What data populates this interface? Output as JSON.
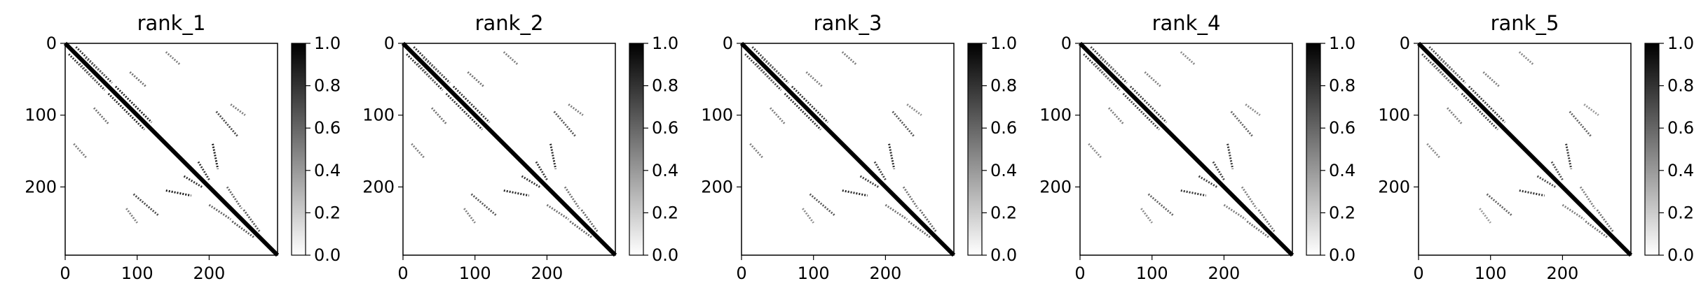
{
  "figure": {
    "type": "heatmap-grid",
    "colormap": "gray_r",
    "color_min": "#ffffff",
    "color_max": "#000000"
  },
  "chart_data": [
    {
      "type": "heatmap",
      "title": "rank_1",
      "xlabel": "",
      "ylabel": "",
      "xlim": [
        0,
        295
      ],
      "ylim": [
        295,
        0
      ],
      "xticks": [
        0,
        100,
        200
      ],
      "yticks": [
        0,
        100,
        200
      ],
      "colorbar": {
        "range": [
          0.0,
          1.0
        ],
        "ticks": [
          "0.0",
          "0.2",
          "0.4",
          "0.6",
          "0.8",
          "1.0"
        ]
      },
      "matrix_size": 295,
      "diagonal": {
        "value": 1.0
      },
      "contacts": [
        {
          "from": [
            5,
            15
          ],
          "to": [
            55,
            65
          ],
          "value": 0.8
        },
        {
          "from": [
            20,
            28
          ],
          "to": [
            45,
            55
          ],
          "value": 0.6
        },
        {
          "from": [
            12,
            140
          ],
          "to": [
            30,
            160
          ],
          "value": 0.5
        },
        {
          "from": [
            40,
            90
          ],
          "to": [
            60,
            112
          ],
          "value": 0.55
        },
        {
          "from": [
            60,
            70
          ],
          "to": [
            110,
            120
          ],
          "value": 0.85
        },
        {
          "from": [
            85,
            230
          ],
          "to": [
            100,
            250
          ],
          "value": 0.5
        },
        {
          "from": [
            95,
            210
          ],
          "to": [
            130,
            240
          ],
          "value": 0.7
        },
        {
          "from": [
            140,
            205
          ],
          "to": [
            175,
            212
          ],
          "value": 0.9
        },
        {
          "from": [
            165,
            185
          ],
          "to": [
            190,
            200
          ],
          "value": 0.8
        },
        {
          "from": [
            200,
            225
          ],
          "to": [
            230,
            245
          ],
          "value": 0.6
        },
        {
          "from": [
            232,
            248
          ],
          "to": [
            262,
            270
          ],
          "value": 0.65
        }
      ]
    },
    {
      "type": "heatmap",
      "title": "rank_2",
      "xlabel": "",
      "ylabel": "",
      "xlim": [
        0,
        295
      ],
      "ylim": [
        295,
        0
      ],
      "xticks": [
        0,
        100,
        200
      ],
      "yticks": [
        0,
        100,
        200
      ],
      "colorbar": {
        "range": [
          0.0,
          1.0
        ],
        "ticks": [
          "0.0",
          "0.2",
          "0.4",
          "0.6",
          "0.8",
          "1.0"
        ]
      },
      "matrix_size": 295,
      "diagonal": {
        "value": 1.0
      },
      "contacts": [
        {
          "from": [
            5,
            15
          ],
          "to": [
            55,
            65
          ],
          "value": 0.8
        },
        {
          "from": [
            20,
            28
          ],
          "to": [
            45,
            55
          ],
          "value": 0.6
        },
        {
          "from": [
            12,
            140
          ],
          "to": [
            30,
            160
          ],
          "value": 0.5
        },
        {
          "from": [
            40,
            90
          ],
          "to": [
            60,
            112
          ],
          "value": 0.55
        },
        {
          "from": [
            60,
            70
          ],
          "to": [
            110,
            120
          ],
          "value": 0.8
        },
        {
          "from": [
            85,
            230
          ],
          "to": [
            100,
            250
          ],
          "value": 0.5
        },
        {
          "from": [
            95,
            210
          ],
          "to": [
            130,
            240
          ],
          "value": 0.65
        },
        {
          "from": [
            140,
            205
          ],
          "to": [
            175,
            212
          ],
          "value": 0.85
        },
        {
          "from": [
            165,
            185
          ],
          "to": [
            190,
            200
          ],
          "value": 0.8
        },
        {
          "from": [
            200,
            225
          ],
          "to": [
            230,
            245
          ],
          "value": 0.55
        },
        {
          "from": [
            232,
            248
          ],
          "to": [
            262,
            270
          ],
          "value": 0.6
        }
      ]
    },
    {
      "type": "heatmap",
      "title": "rank_3",
      "xlabel": "",
      "ylabel": "",
      "xlim": [
        0,
        295
      ],
      "ylim": [
        295,
        0
      ],
      "xticks": [
        0,
        100,
        200
      ],
      "yticks": [
        0,
        100,
        200
      ],
      "colorbar": {
        "range": [
          0.0,
          1.0
        ],
        "ticks": [
          "0.0",
          "0.2",
          "0.4",
          "0.6",
          "0.8",
          "1.0"
        ]
      },
      "matrix_size": 295,
      "diagonal": {
        "value": 1.0
      },
      "contacts": [
        {
          "from": [
            5,
            15
          ],
          "to": [
            55,
            65
          ],
          "value": 0.75
        },
        {
          "from": [
            20,
            28
          ],
          "to": [
            45,
            55
          ],
          "value": 0.6
        },
        {
          "from": [
            12,
            140
          ],
          "to": [
            30,
            160
          ],
          "value": 0.5
        },
        {
          "from": [
            40,
            90
          ],
          "to": [
            60,
            112
          ],
          "value": 0.5
        },
        {
          "from": [
            60,
            70
          ],
          "to": [
            110,
            120
          ],
          "value": 0.8
        },
        {
          "from": [
            85,
            230
          ],
          "to": [
            100,
            250
          ],
          "value": 0.45
        },
        {
          "from": [
            95,
            210
          ],
          "to": [
            130,
            240
          ],
          "value": 0.65
        },
        {
          "from": [
            140,
            205
          ],
          "to": [
            175,
            212
          ],
          "value": 0.85
        },
        {
          "from": [
            165,
            185
          ],
          "to": [
            190,
            200
          ],
          "value": 0.75
        },
        {
          "from": [
            200,
            225
          ],
          "to": [
            230,
            245
          ],
          "value": 0.55
        },
        {
          "from": [
            232,
            248
          ],
          "to": [
            262,
            270
          ],
          "value": 0.6
        }
      ]
    },
    {
      "type": "heatmap",
      "title": "rank_4",
      "xlabel": "",
      "ylabel": "",
      "xlim": [
        0,
        295
      ],
      "ylim": [
        295,
        0
      ],
      "xticks": [
        0,
        100,
        200
      ],
      "yticks": [
        0,
        100,
        200
      ],
      "colorbar": {
        "range": [
          0.0,
          1.0
        ],
        "ticks": [
          "0.0",
          "0.2",
          "0.4",
          "0.6",
          "0.8",
          "1.0"
        ]
      },
      "matrix_size": 295,
      "diagonal": {
        "value": 1.0
      },
      "contacts": [
        {
          "from": [
            5,
            15
          ],
          "to": [
            55,
            65
          ],
          "value": 0.75
        },
        {
          "from": [
            20,
            28
          ],
          "to": [
            45,
            55
          ],
          "value": 0.55
        },
        {
          "from": [
            12,
            140
          ],
          "to": [
            30,
            160
          ],
          "value": 0.45
        },
        {
          "from": [
            40,
            90
          ],
          "to": [
            60,
            112
          ],
          "value": 0.5
        },
        {
          "from": [
            60,
            70
          ],
          "to": [
            110,
            120
          ],
          "value": 0.75
        },
        {
          "from": [
            85,
            230
          ],
          "to": [
            100,
            250
          ],
          "value": 0.45
        },
        {
          "from": [
            95,
            210
          ],
          "to": [
            130,
            240
          ],
          "value": 0.6
        },
        {
          "from": [
            140,
            205
          ],
          "to": [
            175,
            212
          ],
          "value": 0.8
        },
        {
          "from": [
            165,
            185
          ],
          "to": [
            190,
            200
          ],
          "value": 0.75
        },
        {
          "from": [
            200,
            225
          ],
          "to": [
            230,
            245
          ],
          "value": 0.5
        },
        {
          "from": [
            232,
            248
          ],
          "to": [
            262,
            270
          ],
          "value": 0.55
        }
      ]
    },
    {
      "type": "heatmap",
      "title": "rank_5",
      "xlabel": "",
      "ylabel": "",
      "xlim": [
        0,
        295
      ],
      "ylim": [
        295,
        0
      ],
      "xticks": [
        0,
        100,
        200
      ],
      "yticks": [
        0,
        100,
        200
      ],
      "colorbar": {
        "range": [
          0.0,
          1.0
        ],
        "ticks": [
          "0.0",
          "0.2",
          "0.4",
          "0.6",
          "0.8",
          "1.0"
        ]
      },
      "matrix_size": 295,
      "diagonal": {
        "value": 1.0
      },
      "contacts": [
        {
          "from": [
            5,
            15
          ],
          "to": [
            55,
            65
          ],
          "value": 0.7
        },
        {
          "from": [
            20,
            28
          ],
          "to": [
            45,
            55
          ],
          "value": 0.55
        },
        {
          "from": [
            12,
            140
          ],
          "to": [
            30,
            160
          ],
          "value": 0.45
        },
        {
          "from": [
            40,
            90
          ],
          "to": [
            60,
            112
          ],
          "value": 0.5
        },
        {
          "from": [
            60,
            70
          ],
          "to": [
            110,
            120
          ],
          "value": 0.75
        },
        {
          "from": [
            85,
            230
          ],
          "to": [
            100,
            250
          ],
          "value": 0.4
        },
        {
          "from": [
            95,
            210
          ],
          "to": [
            130,
            240
          ],
          "value": 0.6
        },
        {
          "from": [
            140,
            205
          ],
          "to": [
            175,
            212
          ],
          "value": 0.8
        },
        {
          "from": [
            165,
            185
          ],
          "to": [
            190,
            200
          ],
          "value": 0.7
        },
        {
          "from": [
            200,
            225
          ],
          "to": [
            230,
            245
          ],
          "value": 0.5
        },
        {
          "from": [
            232,
            248
          ],
          "to": [
            262,
            270
          ],
          "value": 0.55
        }
      ]
    }
  ]
}
